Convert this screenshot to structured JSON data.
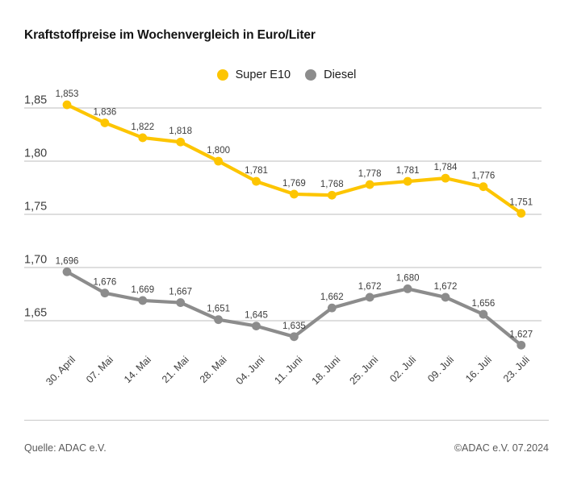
{
  "title": "Kraftstoffpreise im Wochenvergleich in Euro/Liter",
  "footer": {
    "source": "Quelle: ADAC e.V.",
    "copyright": "©ADAC e.V. 07.2024"
  },
  "chart_data": {
    "type": "line",
    "title": "Kraftstoffpreise im Wochenvergleich in Euro/Liter",
    "xlabel": "",
    "ylabel": "Euro/Liter",
    "categories": [
      "30. April",
      "07. Mai",
      "14. Mai",
      "21. Mai",
      "28. Mai",
      "04. Juni",
      "11. Juni",
      "18. Juni",
      "25. Juni",
      "02. Juli",
      "09. Juli",
      "16. Juli",
      "23. Juli"
    ],
    "series": [
      {
        "name": "Super E10",
        "color": "#fdc500",
        "values": [
          1.853,
          1.836,
          1.822,
          1.818,
          1.8,
          1.781,
          1.769,
          1.768,
          1.778,
          1.781,
          1.784,
          1.776,
          1.751
        ]
      },
      {
        "name": "Diesel",
        "color": "#8c8c8c",
        "values": [
          1.696,
          1.676,
          1.669,
          1.667,
          1.651,
          1.645,
          1.635,
          1.662,
          1.672,
          1.68,
          1.672,
          1.656,
          1.627
        ]
      }
    ],
    "yticks": [
      1.85,
      1.8,
      1.75,
      1.7,
      1.65
    ],
    "ylim": [
      1.615,
      1.862
    ],
    "grid": true,
    "legend_position": "top-center",
    "decimal_separator": ",",
    "value_labels_shown": true,
    "grid_color": "#d4d4d4",
    "text_color": "#3d3d3d"
  }
}
